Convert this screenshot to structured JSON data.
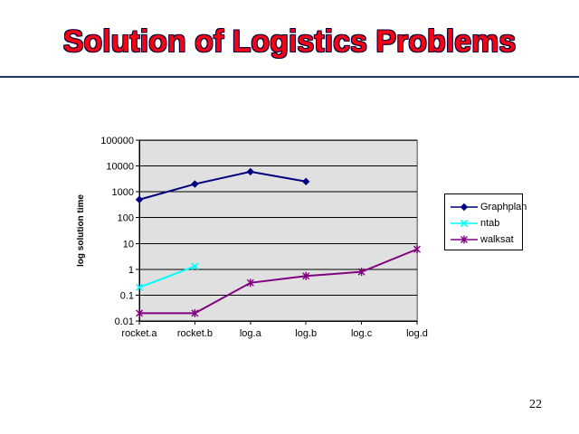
{
  "slide": {
    "title": "Solution of Logistics Problems",
    "page_number": "22",
    "colors": {
      "title_fill": "#fa0015",
      "title_outline": "#00003c",
      "rule": "#1f3864"
    }
  },
  "chart_data": {
    "type": "line",
    "scale": "log-y",
    "title": "",
    "xlabel": "",
    "ylabel": "log solution time",
    "categories": [
      "rocket.a",
      "rocket.b",
      "log.a",
      "log.b",
      "log.c",
      "log.d"
    ],
    "y_tick_labels": [
      "0.01",
      "0.1",
      "1",
      "10",
      "100",
      "1000",
      "10000",
      "100000"
    ],
    "ylim": [
      0.01,
      100000
    ],
    "grid": true,
    "legend_position": "right",
    "plot_bg": "#e0e0e0",
    "plot_border": "#808080",
    "gridline_color": "#000000",
    "series": [
      {
        "name": "Graphplan",
        "color": "#000080",
        "marker": "diamond",
        "values": [
          500,
          2000,
          6000,
          2500,
          null,
          null
        ]
      },
      {
        "name": "ntab",
        "color": "#00ffff",
        "marker": "x",
        "values": [
          0.2,
          1.3,
          null,
          null,
          null,
          null
        ]
      },
      {
        "name": "walksat",
        "color": "#800080",
        "marker": "asterisk",
        "values": [
          0.02,
          0.02,
          0.3,
          0.55,
          0.8,
          6
        ]
      }
    ]
  }
}
